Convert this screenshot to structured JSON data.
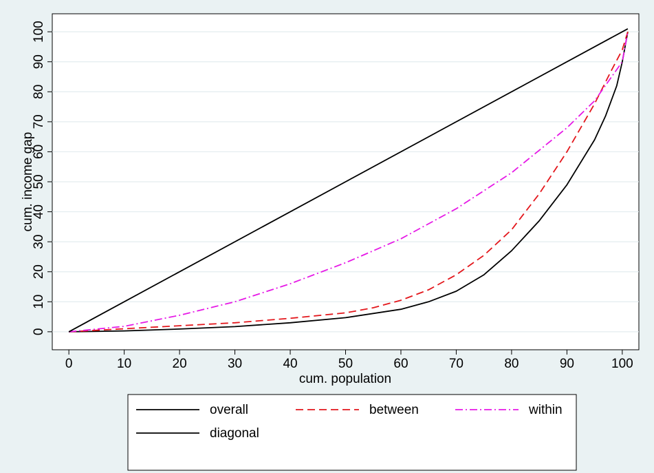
{
  "chart_data": {
    "type": "line",
    "xlabel": "cum. population",
    "ylabel": "cum. income gap",
    "xlim": [
      -3,
      103
    ],
    "ylim": [
      -6,
      106
    ],
    "xticks": [
      0,
      10,
      20,
      30,
      40,
      50,
      60,
      70,
      80,
      90,
      100
    ],
    "yticks": [
      0,
      10,
      20,
      30,
      40,
      50,
      60,
      70,
      80,
      90,
      100
    ],
    "grid": "horizontal",
    "legend_position": "bottom",
    "colors": {
      "background": "#eaf2f3",
      "plot_background": "#ffffff",
      "overall": "#000000",
      "between": "#e3161b",
      "within": "#e619e6",
      "diagonal": "#000000"
    },
    "series": [
      {
        "name": "overall",
        "color": "#000000",
        "dash": "solid",
        "x": [
          0,
          10,
          20,
          30,
          40,
          50,
          60,
          65,
          70,
          75,
          80,
          85,
          90,
          95,
          97,
          99,
          100,
          101
        ],
        "y": [
          0,
          0.3,
          0.9,
          1.7,
          3,
          4.7,
          7.5,
          10,
          13.5,
          19,
          27,
          37,
          49,
          64,
          72,
          82,
          90,
          100
        ]
      },
      {
        "name": "between",
        "color": "#e3161b",
        "dash": "dashed",
        "x": [
          0,
          10,
          20,
          30,
          40,
          50,
          55,
          60,
          65,
          70,
          75,
          80,
          85,
          90,
          95,
          98,
          100,
          101
        ],
        "y": [
          0,
          1,
          2,
          3,
          4.5,
          6.3,
          8,
          10.5,
          14,
          19,
          25.5,
          34,
          46,
          60,
          76,
          87,
          94,
          100
        ]
      },
      {
        "name": "within",
        "color": "#e619e6",
        "dash": "dashdot",
        "x": [
          0,
          10,
          20,
          30,
          40,
          50,
          60,
          70,
          80,
          90,
          95,
          100,
          101
        ],
        "y": [
          0,
          1.8,
          5.5,
          10,
          16,
          23,
          31,
          41,
          53,
          68,
          77,
          90,
          100
        ]
      },
      {
        "name": "diagonal",
        "color": "#000000",
        "dash": "solid",
        "x": [
          0,
          101
        ],
        "y": [
          0,
          101
        ]
      }
    ],
    "legend": [
      {
        "key": "overall",
        "label": "overall",
        "row": 0,
        "col": 0
      },
      {
        "key": "between",
        "label": "between",
        "row": 0,
        "col": 1
      },
      {
        "key": "within",
        "label": "within",
        "row": 0,
        "col": 2
      },
      {
        "key": "diagonal",
        "label": "diagonal",
        "row": 1,
        "col": 0
      }
    ]
  }
}
